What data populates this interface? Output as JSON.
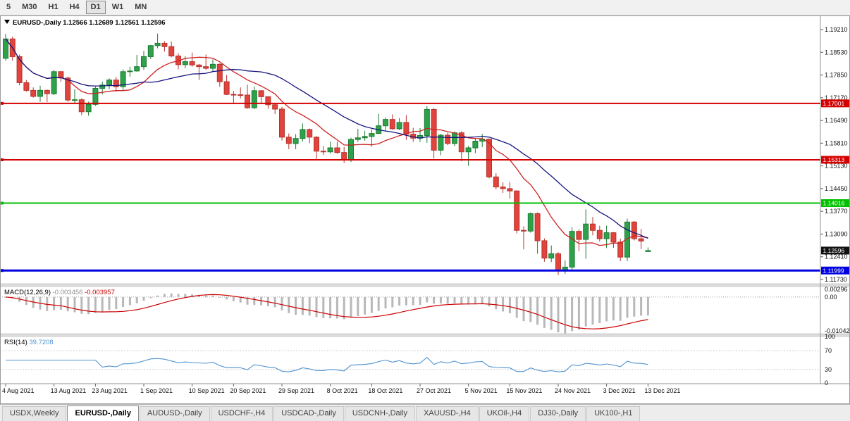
{
  "toolbar": {
    "timeframes": [
      "5",
      "M30",
      "H1",
      "H4",
      "D1",
      "W1",
      "MN"
    ],
    "active": "D1"
  },
  "quote": {
    "symbol": "EURUSD-,Daily",
    "open": "1.12566",
    "high": "1.12689",
    "low": "1.12561",
    "close": "1.12596"
  },
  "chart_data": {
    "type": "candlestick",
    "title": "EURUSD-,Daily",
    "price_axis": {
      "top": 1.1921,
      "bottom": 1.1173,
      "labels": [
        "1.19210",
        "1.18530",
        "1.17850",
        "1.17170",
        "1.16490",
        "1.15810",
        "1.15130",
        "1.14450",
        "1.13770",
        "1.13090",
        "1.12410",
        "1.11730"
      ]
    },
    "date_ticks": [
      {
        "index": 0,
        "label": "4 Aug 2021"
      },
      {
        "index": 7,
        "label": "13 Aug 2021"
      },
      {
        "index": 13,
        "label": "23 Aug 2021"
      },
      {
        "index": 20,
        "label": "1 Sep 2021"
      },
      {
        "index": 27,
        "label": "10 Sep 2021"
      },
      {
        "index": 33,
        "label": "20 Sep 2021"
      },
      {
        "index": 40,
        "label": "29 Sep 2021"
      },
      {
        "index": 47,
        "label": "8 Oct 2021"
      },
      {
        "index": 53,
        "label": "18 Oct 2021"
      },
      {
        "index": 60,
        "label": "27 Oct 2021"
      },
      {
        "index": 67,
        "label": "5 Nov 2021"
      },
      {
        "index": 73,
        "label": "15 Nov 2021"
      },
      {
        "index": 80,
        "label": "24 Nov 2021"
      },
      {
        "index": 87,
        "label": "3 Dec 2021"
      },
      {
        "index": 93,
        "label": "13 Dec 2021"
      }
    ],
    "candles": [
      [
        1.1835,
        1.1908,
        1.1828,
        1.1893
      ],
      [
        1.1893,
        1.19,
        1.1828,
        1.184
      ],
      [
        1.184,
        1.1846,
        1.1754,
        1.1762
      ],
      [
        1.1762,
        1.177,
        1.1735,
        1.1739
      ],
      [
        1.1739,
        1.1748,
        1.1717,
        1.1721
      ],
      [
        1.1721,
        1.1753,
        1.1705,
        1.1739
      ],
      [
        1.1739,
        1.1742,
        1.1704,
        1.1729
      ],
      [
        1.1729,
        1.18,
        1.1725,
        1.1795
      ],
      [
        1.1795,
        1.1797,
        1.1765,
        1.1776
      ],
      [
        1.1776,
        1.178,
        1.1705,
        1.171
      ],
      [
        1.171,
        1.1742,
        1.17,
        1.1711
      ],
      [
        1.1711,
        1.1715,
        1.1665,
        1.1675
      ],
      [
        1.1675,
        1.1705,
        1.1663,
        1.1697
      ],
      [
        1.1697,
        1.175,
        1.1693,
        1.1745
      ],
      [
        1.1745,
        1.1765,
        1.1727,
        1.1755
      ],
      [
        1.1755,
        1.1775,
        1.1743,
        1.177
      ],
      [
        1.177,
        1.1779,
        1.1735,
        1.175
      ],
      [
        1.175,
        1.1802,
        1.174,
        1.1795
      ],
      [
        1.1795,
        1.181,
        1.178,
        1.1797
      ],
      [
        1.1797,
        1.1845,
        1.1795,
        1.181
      ],
      [
        1.181,
        1.1857,
        1.18,
        1.184
      ],
      [
        1.184,
        1.1875,
        1.1833,
        1.1873
      ],
      [
        1.1873,
        1.1909,
        1.1865,
        1.188
      ],
      [
        1.188,
        1.1886,
        1.1855,
        1.187
      ],
      [
        1.187,
        1.1885,
        1.1838,
        1.1842
      ],
      [
        1.1842,
        1.185,
        1.1802,
        1.1816
      ],
      [
        1.1816,
        1.1841,
        1.1805,
        1.1825
      ],
      [
        1.1825,
        1.1852,
        1.181,
        1.1815
      ],
      [
        1.1815,
        1.1818,
        1.177,
        1.181
      ],
      [
        1.181,
        1.1846,
        1.18,
        1.1805
      ],
      [
        1.1805,
        1.1832,
        1.1795,
        1.1817
      ],
      [
        1.1817,
        1.182,
        1.175,
        1.1765
      ],
      [
        1.1765,
        1.1785,
        1.1725,
        1.1727
      ],
      [
        1.1727,
        1.1737,
        1.17,
        1.1726
      ],
      [
        1.1726,
        1.1748,
        1.1715,
        1.1725
      ],
      [
        1.1725,
        1.1756,
        1.1684,
        1.1687
      ],
      [
        1.1687,
        1.175,
        1.1683,
        1.1738
      ],
      [
        1.1738,
        1.174,
        1.1701,
        1.172
      ],
      [
        1.172,
        1.1722,
        1.1684,
        1.1696
      ],
      [
        1.1696,
        1.17,
        1.1668,
        1.1683
      ],
      [
        1.1683,
        1.169,
        1.1589,
        1.1599
      ],
      [
        1.1599,
        1.161,
        1.1563,
        1.158
      ],
      [
        1.158,
        1.1608,
        1.1563,
        1.1595
      ],
      [
        1.1595,
        1.164,
        1.1586,
        1.1622
      ],
      [
        1.1622,
        1.1625,
        1.1581,
        1.1599
      ],
      [
        1.1599,
        1.1602,
        1.1529,
        1.1557
      ],
      [
        1.1557,
        1.1572,
        1.1546,
        1.1555
      ],
      [
        1.1555,
        1.1586,
        1.155,
        1.1567
      ],
      [
        1.1567,
        1.1586,
        1.1549,
        1.1553
      ],
      [
        1.1553,
        1.157,
        1.1522,
        1.153
      ],
      [
        1.153,
        1.1597,
        1.1525,
        1.1592
      ],
      [
        1.1592,
        1.1624,
        1.1585,
        1.1597
      ],
      [
        1.1597,
        1.1618,
        1.1588,
        1.1601
      ],
      [
        1.1601,
        1.1622,
        1.1571,
        1.161
      ],
      [
        1.161,
        1.1669,
        1.1609,
        1.1633
      ],
      [
        1.1633,
        1.1658,
        1.1617,
        1.1652
      ],
      [
        1.1652,
        1.1667,
        1.1621,
        1.1624
      ],
      [
        1.1624,
        1.1656,
        1.162,
        1.1643
      ],
      [
        1.1643,
        1.1665,
        1.1591,
        1.1608
      ],
      [
        1.1608,
        1.1627,
        1.1585,
        1.1596
      ],
      [
        1.1596,
        1.1626,
        1.1585,
        1.1604
      ],
      [
        1.1604,
        1.1692,
        1.1582,
        1.1682
      ],
      [
        1.1682,
        1.1686,
        1.1535,
        1.156
      ],
      [
        1.156,
        1.1609,
        1.1545,
        1.1605
      ],
      [
        1.1605,
        1.1612,
        1.1575,
        1.158
      ],
      [
        1.158,
        1.1616,
        1.1572,
        1.1612
      ],
      [
        1.1612,
        1.1617,
        1.1527,
        1.1555
      ],
      [
        1.1555,
        1.1573,
        1.1513,
        1.1567
      ],
      [
        1.1567,
        1.1595,
        1.1551,
        1.1587
      ],
      [
        1.1587,
        1.1609,
        1.1569,
        1.1593
      ],
      [
        1.1593,
        1.1595,
        1.1476,
        1.148
      ],
      [
        1.148,
        1.1491,
        1.1443,
        1.145
      ],
      [
        1.145,
        1.1464,
        1.1432,
        1.1445
      ],
      [
        1.1445,
        1.1465,
        1.1415,
        1.1438
      ],
      [
        1.1438,
        1.144,
        1.1311,
        1.132
      ],
      [
        1.132,
        1.1332,
        1.1263,
        1.1318
      ],
      [
        1.1318,
        1.1374,
        1.1313,
        1.137
      ],
      [
        1.137,
        1.1374,
        1.125,
        1.1289
      ],
      [
        1.1289,
        1.1296,
        1.1226,
        1.1237
      ],
      [
        1.1237,
        1.1275,
        1.1225,
        1.125
      ],
      [
        1.125,
        1.1255,
        1.1186,
        1.12
      ],
      [
        1.12,
        1.123,
        1.119,
        1.121
      ],
      [
        1.121,
        1.1329,
        1.1203,
        1.1317
      ],
      [
        1.1317,
        1.1323,
        1.1258,
        1.1293
      ],
      [
        1.1293,
        1.1383,
        1.1235,
        1.1339
      ],
      [
        1.1339,
        1.136,
        1.1305,
        1.132
      ],
      [
        1.132,
        1.1334,
        1.1287,
        1.1295
      ],
      [
        1.1295,
        1.1334,
        1.1267,
        1.1313
      ],
      [
        1.1313,
        1.1315,
        1.1268,
        1.1285
      ],
      [
        1.1285,
        1.1295,
        1.1228,
        1.124
      ],
      [
        1.124,
        1.1355,
        1.1228,
        1.1345
      ],
      [
        1.1345,
        1.1348,
        1.129,
        1.1295
      ],
      [
        1.1295,
        1.1324,
        1.1264,
        1.1288
      ],
      [
        1.12566,
        1.12689,
        1.12561,
        1.12596
      ]
    ],
    "hlines": [
      {
        "price": 1.17001,
        "label": "1.17001",
        "color": "#d40000",
        "width": 2
      },
      {
        "price": 1.15313,
        "label": "1.15313",
        "color": "#d40000",
        "width": 2
      },
      {
        "price": 1.14016,
        "label": "1.14016",
        "color": "#00c000",
        "width": 2
      },
      {
        "price": 1.11999,
        "label": "1.11999",
        "color": "#0000e0",
        "width": 3
      }
    ],
    "current_price": {
      "price": 1.12596,
      "label": "1.12596",
      "color": "#111111"
    },
    "moving_averages": [
      {
        "period": 10,
        "color": "#cc2222"
      },
      {
        "period": 21,
        "color": "#15157e"
      }
    ],
    "colors": {
      "up": "#2ea24b",
      "up_stroke": "#1d7a33",
      "down": "#e0443c",
      "down_stroke": "#b5342d",
      "background": "#ffffff"
    },
    "macd": {
      "label": "MACD(12,26,9)",
      "value_main": "-0.003456",
      "value_signal": "-0.003957",
      "fast": 12,
      "slow": 26,
      "signal": 9,
      "axis_labels": [
        "0.00296",
        "0.00",
        "-0.01042"
      ],
      "axis_values": [
        0.00296,
        0,
        -0.01042
      ],
      "histogram_color": "#b8b8b8",
      "signal_color": "#cc0000"
    },
    "rsi": {
      "label": "RSI(14)",
      "value": "39.7208",
      "period": 14,
      "axis_labels": [
        "100",
        "70",
        "30",
        "0"
      ],
      "axis_values": [
        100,
        70,
        30,
        0
      ],
      "levels": [
        70,
        30
      ],
      "color": "#4f93d2"
    }
  },
  "tabs": {
    "items": [
      "USDX,Weekly",
      "EURUSD-,Daily",
      "AUDUSD-,Daily",
      "USDCHF-,H4",
      "USDCAD-,Daily",
      "USDCNH-,Daily",
      "XAUUSD-,H4",
      "UKOil-,H4",
      "DJ30-,Daily",
      "UK100-,H1"
    ],
    "active_index": 1
  }
}
